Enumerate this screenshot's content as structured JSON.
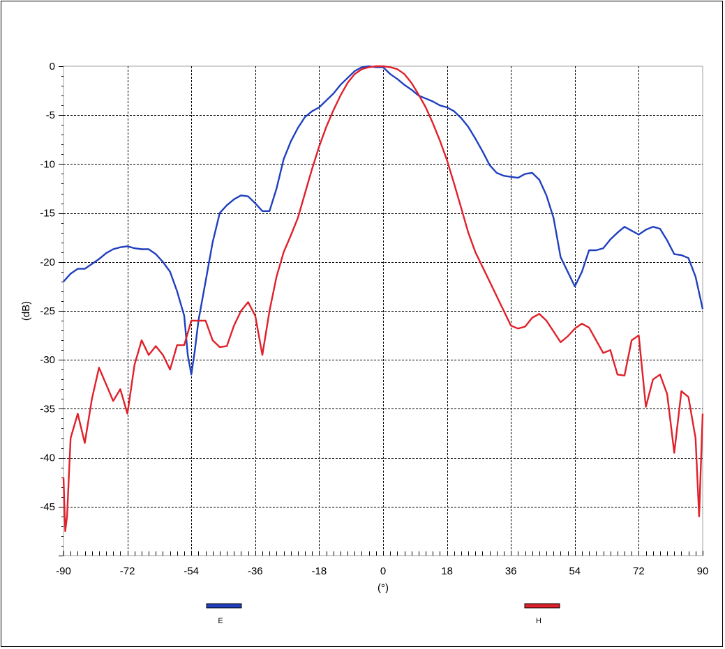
{
  "chart_data": {
    "type": "line",
    "title": "",
    "xlabel": "(°)",
    "ylabel": "(dB)",
    "xlim": [
      -90,
      90
    ],
    "ylim": [
      -50,
      0
    ],
    "x_ticks": [
      -90,
      -72,
      -54,
      -36,
      -18,
      0,
      18,
      36,
      54,
      72,
      90
    ],
    "y_ticks": [
      0,
      -5,
      -10,
      -15,
      -20,
      -25,
      -30,
      -35,
      -40,
      -45
    ],
    "grid": true,
    "legend_position": "bottom",
    "series": [
      {
        "name": "E",
        "color": "#1f3fbf",
        "points": [
          [
            -90,
            -22.0
          ],
          [
            -88,
            -21.2
          ],
          [
            -86,
            -20.7
          ],
          [
            -84,
            -20.7
          ],
          [
            -82,
            -20.2
          ],
          [
            -80,
            -19.7
          ],
          [
            -78,
            -19.1
          ],
          [
            -76,
            -18.7
          ],
          [
            -74,
            -18.5
          ],
          [
            -72,
            -18.4
          ],
          [
            -70,
            -18.6
          ],
          [
            -68,
            -18.7
          ],
          [
            -66,
            -18.7
          ],
          [
            -64,
            -19.2
          ],
          [
            -62,
            -20.0
          ],
          [
            -60,
            -21.0
          ],
          [
            -58,
            -23.0
          ],
          [
            -56,
            -25.5
          ],
          [
            -55,
            -29.5
          ],
          [
            -54,
            -31.5
          ],
          [
            -53,
            -29.0
          ],
          [
            -52,
            -26.0
          ],
          [
            -50,
            -22.0
          ],
          [
            -48,
            -18.0
          ],
          [
            -46,
            -15.0
          ],
          [
            -44,
            -14.2
          ],
          [
            -42,
            -13.6
          ],
          [
            -40,
            -13.2
          ],
          [
            -38,
            -13.3
          ],
          [
            -36,
            -14.0
          ],
          [
            -34,
            -14.8
          ],
          [
            -32,
            -14.8
          ],
          [
            -30,
            -12.5
          ],
          [
            -28,
            -9.5
          ],
          [
            -26,
            -7.7
          ],
          [
            -24,
            -6.3
          ],
          [
            -22,
            -5.2
          ],
          [
            -20,
            -4.6
          ],
          [
            -18,
            -4.2
          ],
          [
            -16,
            -3.5
          ],
          [
            -14,
            -2.8
          ],
          [
            -12,
            -1.9
          ],
          [
            -10,
            -1.2
          ],
          [
            -8,
            -0.5
          ],
          [
            -6,
            -0.1
          ],
          [
            -4,
            0.0
          ],
          [
            -2,
            -0.1
          ],
          [
            0,
            -0.1
          ],
          [
            2,
            -0.8
          ],
          [
            4,
            -1.3
          ],
          [
            6,
            -1.9
          ],
          [
            8,
            -2.4
          ],
          [
            10,
            -3.0
          ],
          [
            12,
            -3.3
          ],
          [
            14,
            -3.6
          ],
          [
            16,
            -4.0
          ],
          [
            18,
            -4.2
          ],
          [
            20,
            -4.6
          ],
          [
            22,
            -5.3
          ],
          [
            24,
            -6.2
          ],
          [
            26,
            -7.4
          ],
          [
            28,
            -8.7
          ],
          [
            30,
            -10.1
          ],
          [
            32,
            -10.9
          ],
          [
            34,
            -11.2
          ],
          [
            36,
            -11.3
          ],
          [
            38,
            -11.4
          ],
          [
            40,
            -11.0
          ],
          [
            42,
            -10.9
          ],
          [
            44,
            -11.6
          ],
          [
            46,
            -13.2
          ],
          [
            48,
            -15.5
          ],
          [
            50,
            -19.5
          ],
          [
            52,
            -21.0
          ],
          [
            54,
            -22.5
          ],
          [
            56,
            -21.0
          ],
          [
            58,
            -18.8
          ],
          [
            60,
            -18.8
          ],
          [
            62,
            -18.6
          ],
          [
            64,
            -17.7
          ],
          [
            66,
            -17.0
          ],
          [
            68,
            -16.4
          ],
          [
            70,
            -16.8
          ],
          [
            72,
            -17.2
          ],
          [
            74,
            -16.7
          ],
          [
            76,
            -16.4
          ],
          [
            78,
            -16.6
          ],
          [
            80,
            -17.8
          ],
          [
            82,
            -19.2
          ],
          [
            84,
            -19.3
          ],
          [
            86,
            -19.6
          ],
          [
            88,
            -21.5
          ],
          [
            90,
            -24.8
          ]
        ]
      },
      {
        "name": "H",
        "color": "#e0202a",
        "points": [
          [
            -90,
            -42.0
          ],
          [
            -89.5,
            -47.5
          ],
          [
            -89,
            -46.0
          ],
          [
            -88,
            -38.0
          ],
          [
            -86,
            -35.5
          ],
          [
            -84,
            -38.5
          ],
          [
            -82,
            -34.0
          ],
          [
            -80,
            -30.8
          ],
          [
            -78,
            -32.5
          ],
          [
            -76,
            -34.2
          ],
          [
            -74,
            -33.0
          ],
          [
            -72,
            -35.5
          ],
          [
            -70,
            -30.5
          ],
          [
            -68,
            -28.0
          ],
          [
            -66,
            -29.5
          ],
          [
            -64,
            -28.6
          ],
          [
            -62,
            -29.5
          ],
          [
            -60,
            -31.0
          ],
          [
            -58,
            -28.5
          ],
          [
            -56,
            -28.5
          ],
          [
            -54,
            -26.0
          ],
          [
            -52,
            -26.0
          ],
          [
            -50,
            -26.0
          ],
          [
            -48,
            -28.0
          ],
          [
            -46,
            -28.7
          ],
          [
            -44,
            -28.6
          ],
          [
            -42,
            -26.5
          ],
          [
            -40,
            -25.0
          ],
          [
            -38,
            -24.1
          ],
          [
            -36,
            -25.5
          ],
          [
            -34,
            -29.5
          ],
          [
            -32,
            -25.0
          ],
          [
            -30,
            -21.5
          ],
          [
            -28,
            -19.0
          ],
          [
            -26,
            -17.3
          ],
          [
            -24,
            -15.5
          ],
          [
            -22,
            -13.0
          ],
          [
            -20,
            -10.5
          ],
          [
            -18,
            -8.2
          ],
          [
            -16,
            -6.2
          ],
          [
            -14,
            -4.5
          ],
          [
            -12,
            -3.0
          ],
          [
            -10,
            -1.7
          ],
          [
            -8,
            -0.8
          ],
          [
            -6,
            -0.3
          ],
          [
            -4,
            -0.1
          ],
          [
            -2,
            0.0
          ],
          [
            0,
            0.0
          ],
          [
            2,
            -0.1
          ],
          [
            4,
            -0.3
          ],
          [
            6,
            -0.8
          ],
          [
            8,
            -1.7
          ],
          [
            10,
            -2.9
          ],
          [
            12,
            -4.2
          ],
          [
            14,
            -5.8
          ],
          [
            16,
            -7.6
          ],
          [
            18,
            -9.6
          ],
          [
            20,
            -12.0
          ],
          [
            22,
            -14.5
          ],
          [
            24,
            -17.0
          ],
          [
            26,
            -19.0
          ],
          [
            28,
            -20.5
          ],
          [
            30,
            -22.0
          ],
          [
            32,
            -23.5
          ],
          [
            34,
            -25.0
          ],
          [
            36,
            -26.5
          ],
          [
            38,
            -26.8
          ],
          [
            40,
            -26.6
          ],
          [
            42,
            -25.7
          ],
          [
            44,
            -25.3
          ],
          [
            46,
            -26.0
          ],
          [
            48,
            -27.1
          ],
          [
            50,
            -28.2
          ],
          [
            52,
            -27.6
          ],
          [
            54,
            -26.8
          ],
          [
            56,
            -26.3
          ],
          [
            58,
            -26.7
          ],
          [
            60,
            -28.0
          ],
          [
            62,
            -29.3
          ],
          [
            64,
            -29.0
          ],
          [
            66,
            -31.5
          ],
          [
            68,
            -31.6
          ],
          [
            70,
            -28.0
          ],
          [
            72,
            -27.5
          ],
          [
            74,
            -34.8
          ],
          [
            76,
            -32.0
          ],
          [
            78,
            -31.5
          ],
          [
            80,
            -33.5
          ],
          [
            82,
            -39.5
          ],
          [
            84,
            -33.2
          ],
          [
            86,
            -33.8
          ],
          [
            88,
            -38.0
          ],
          [
            89,
            -46.0
          ],
          [
            90,
            -35.5
          ]
        ]
      }
    ]
  }
}
